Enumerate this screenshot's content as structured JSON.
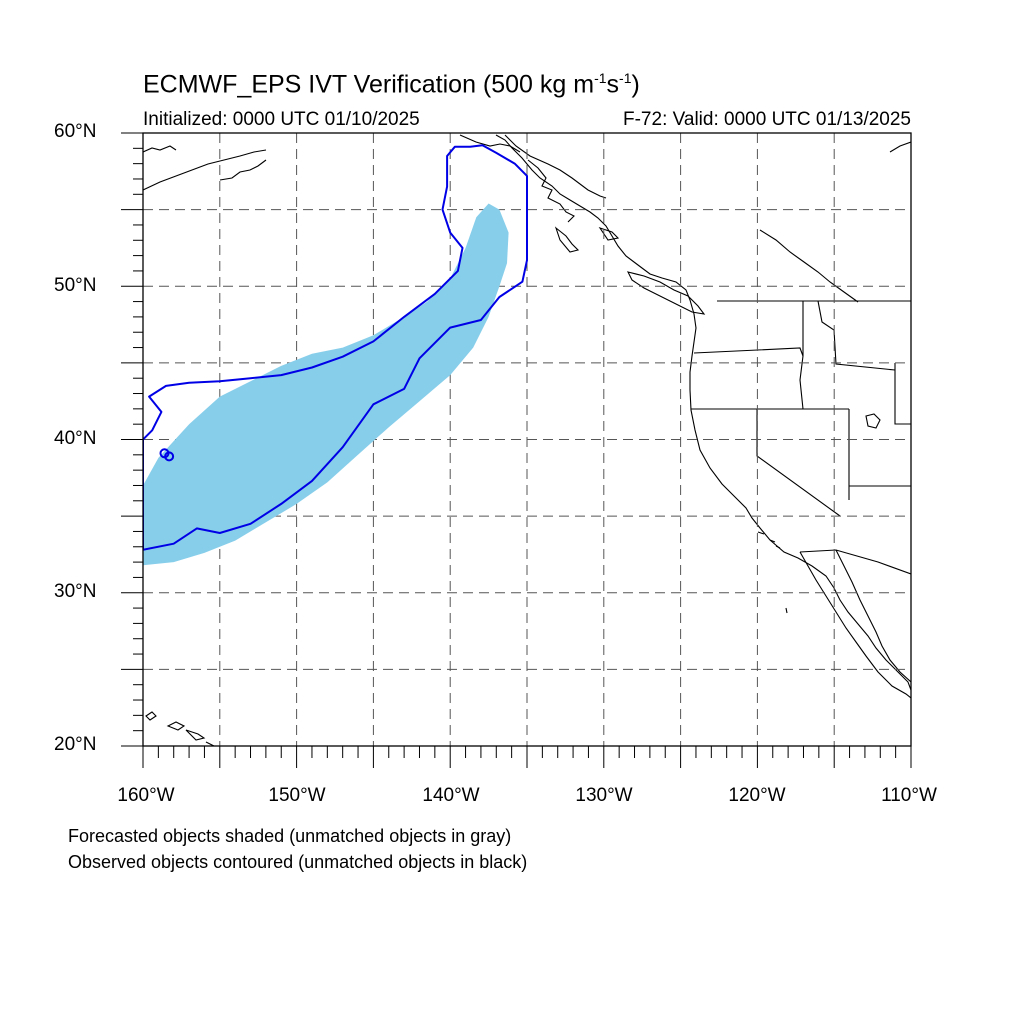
{
  "title": {
    "main": "ECMWF_EPS IVT Verification (500 kg m",
    "sup1": "-1",
    "mid": "s",
    "sup2": "-1",
    "end": ")"
  },
  "subtitle_left": "Initialized: 0000 UTC 01/10/2025",
  "subtitle_right": "F-72: Valid: 0000 UTC 01/13/2025",
  "lat_labels": [
    "60°N",
    "50°N",
    "40°N",
    "30°N",
    "20°N"
  ],
  "lon_labels": [
    "160°W",
    "150°W",
    "140°W",
    "130°W",
    "120°W",
    "110°W"
  ],
  "notes": [
    "Forecasted objects shaded (unmatched objects in gray)",
    "Observed objects contoured (unmatched objects in black)"
  ],
  "colors": {
    "forecast_fill": "#87ceeb",
    "observed_contour": "#0000e6",
    "grid": "#555555",
    "coast": "#000000"
  },
  "chart_data": {
    "type": "map",
    "projection": "cylindrical-equidistant",
    "lon_range": [
      -160,
      -110
    ],
    "lat_range": [
      20,
      60
    ],
    "grid": true,
    "forecast_object": {
      "name": "Forecasted objects",
      "polygon_lonlat": [
        [
          -160,
          31.8
        ],
        [
          -158,
          32.0
        ],
        [
          -156,
          32.6
        ],
        [
          -154,
          33.4
        ],
        [
          -152,
          34.6
        ],
        [
          -150,
          35.8
        ],
        [
          -148,
          37.2
        ],
        [
          -146,
          39.0
        ],
        [
          -144,
          40.8
        ],
        [
          -142,
          42.5
        ],
        [
          -140,
          44.2
        ],
        [
          -138.5,
          46.0
        ],
        [
          -137.5,
          48.0
        ],
        [
          -136.8,
          50.0
        ],
        [
          -136.3,
          51.5
        ],
        [
          -136.2,
          53.5
        ],
        [
          -136.8,
          55.0
        ],
        [
          -137.5,
          55.4
        ],
        [
          -138.3,
          54.5
        ],
        [
          -139.0,
          52.5
        ],
        [
          -140.0,
          50.5
        ],
        [
          -141.5,
          49.0
        ],
        [
          -143.0,
          48.0
        ],
        [
          -145.0,
          46.8
        ],
        [
          -147.0,
          46.0
        ],
        [
          -149.0,
          45.6
        ],
        [
          -151.0,
          44.8
        ],
        [
          -153.0,
          43.8
        ],
        [
          -155.0,
          42.8
        ],
        [
          -157.0,
          41.0
        ],
        [
          -159.0,
          38.8
        ],
        [
          -160,
          37.0
        ]
      ]
    },
    "observed_object": {
      "name": "Observed objects",
      "polygon_lonlat": [
        [
          -160,
          32.8
        ],
        [
          -158,
          33.2
        ],
        [
          -156.5,
          34.2
        ],
        [
          -155,
          33.9
        ],
        [
          -153,
          34.5
        ],
        [
          -151,
          35.8
        ],
        [
          -149,
          37.3
        ],
        [
          -147,
          39.5
        ],
        [
          -145,
          42.3
        ],
        [
          -143,
          43.3
        ],
        [
          -142,
          45.3
        ],
        [
          -140,
          47.3
        ],
        [
          -138,
          47.8
        ],
        [
          -136.8,
          49.3
        ],
        [
          -135.3,
          50.3
        ],
        [
          -135.0,
          51.7
        ],
        [
          -135.0,
          57.2
        ],
        [
          -135.8,
          58.0
        ],
        [
          -137.0,
          58.7
        ],
        [
          -137.9,
          59.2
        ],
        [
          -138.7,
          59.1
        ],
        [
          -139.7,
          59.1
        ],
        [
          -140.2,
          58.5
        ],
        [
          -140.2,
          56.5
        ],
        [
          -140.5,
          55.0
        ],
        [
          -140.0,
          53.5
        ],
        [
          -139.2,
          52.5
        ],
        [
          -139.5,
          51.0
        ],
        [
          -141.0,
          49.5
        ],
        [
          -143.0,
          48.0
        ],
        [
          -145.0,
          46.4
        ],
        [
          -147.0,
          45.4
        ],
        [
          -149.0,
          44.7
        ],
        [
          -151.0,
          44.2
        ],
        [
          -153.0,
          44.0
        ],
        [
          -155.0,
          43.8
        ],
        [
          -157.0,
          43.7
        ],
        [
          -158.5,
          43.5
        ],
        [
          -159.6,
          42.8
        ],
        [
          -158.8,
          41.8
        ],
        [
          -159.4,
          40.6
        ],
        [
          -160,
          40.0
        ]
      ],
      "small_ring_lonlat": [
        [
          -158.6,
          39.1
        ],
        [
          -158.3,
          38.9
        ]
      ]
    }
  }
}
